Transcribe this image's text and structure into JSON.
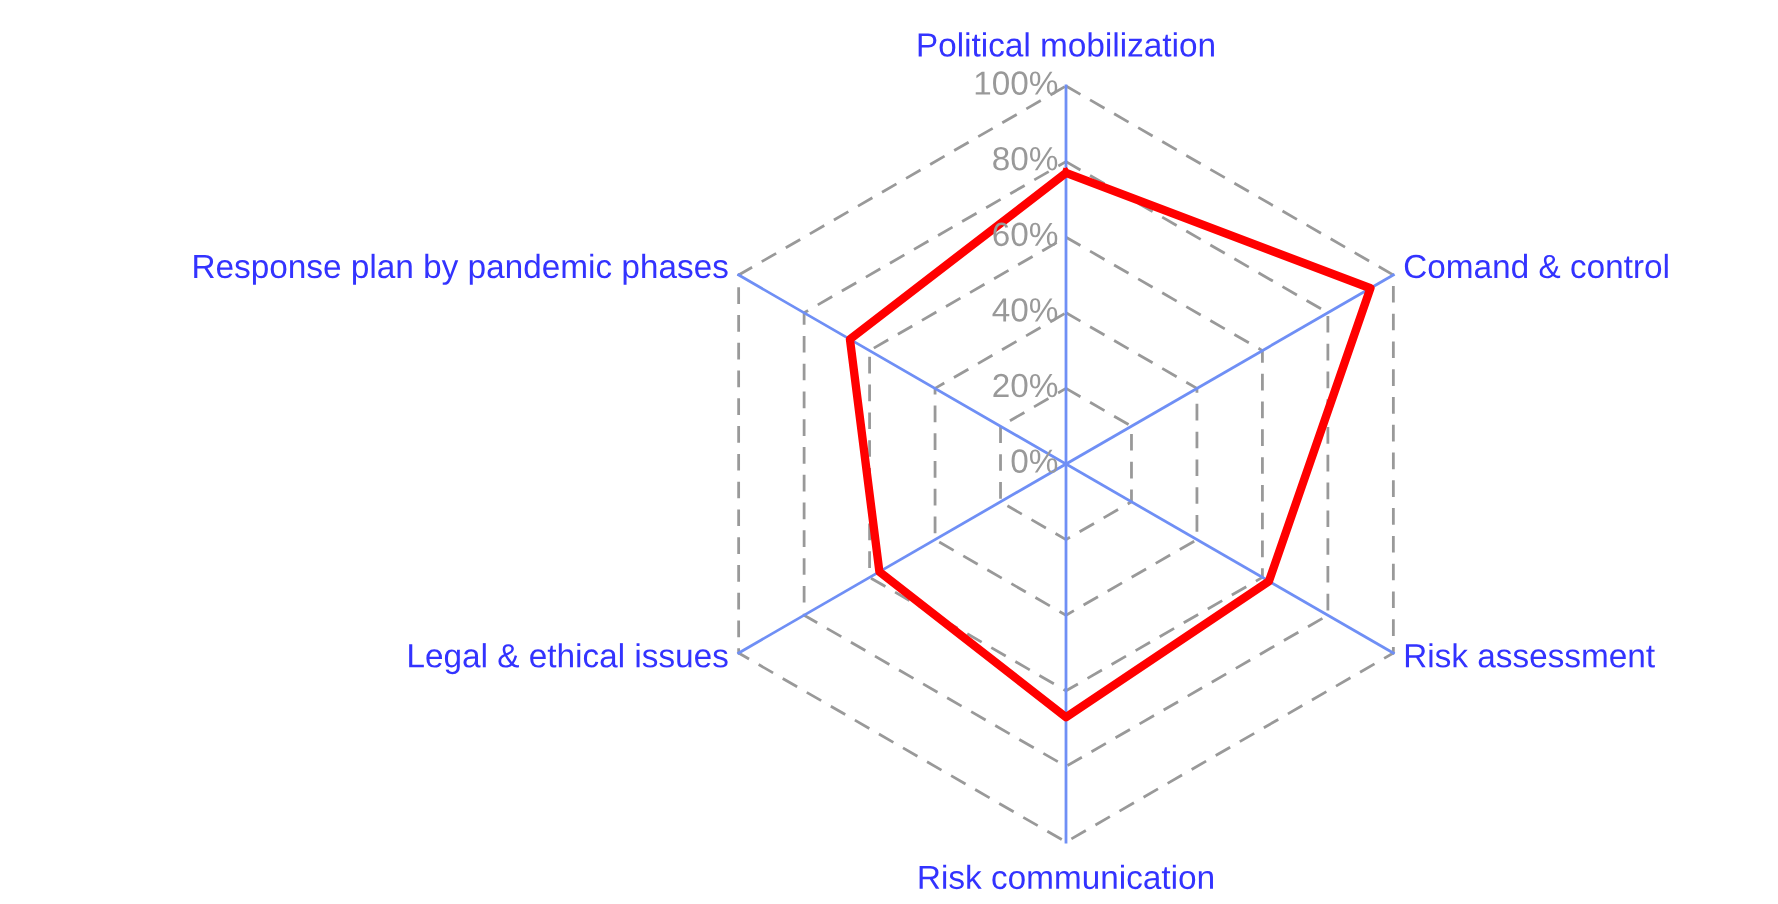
{
  "chart_data": {
    "type": "radar",
    "categories": [
      "Political mobilization",
      "Comand & control",
      "Risk assessment",
      "Risk communication",
      "Legal & ethical issues",
      "Response plan by pandemic phases"
    ],
    "series": [
      {
        "color": "#ff0000",
        "values": [
          77,
          93,
          62,
          67,
          57,
          66
        ]
      }
    ],
    "ylim": [
      0,
      100
    ],
    "yticks": [
      {
        "value": 0,
        "label": "0%"
      },
      {
        "value": 20,
        "label": "20%"
      },
      {
        "value": 40,
        "label": "40%"
      },
      {
        "value": 60,
        "label": "60%"
      },
      {
        "value": 80,
        "label": "80%"
      },
      {
        "value": 100,
        "label": "100%"
      }
    ],
    "grid": true,
    "line_style": "solid",
    "marker": "none"
  }
}
